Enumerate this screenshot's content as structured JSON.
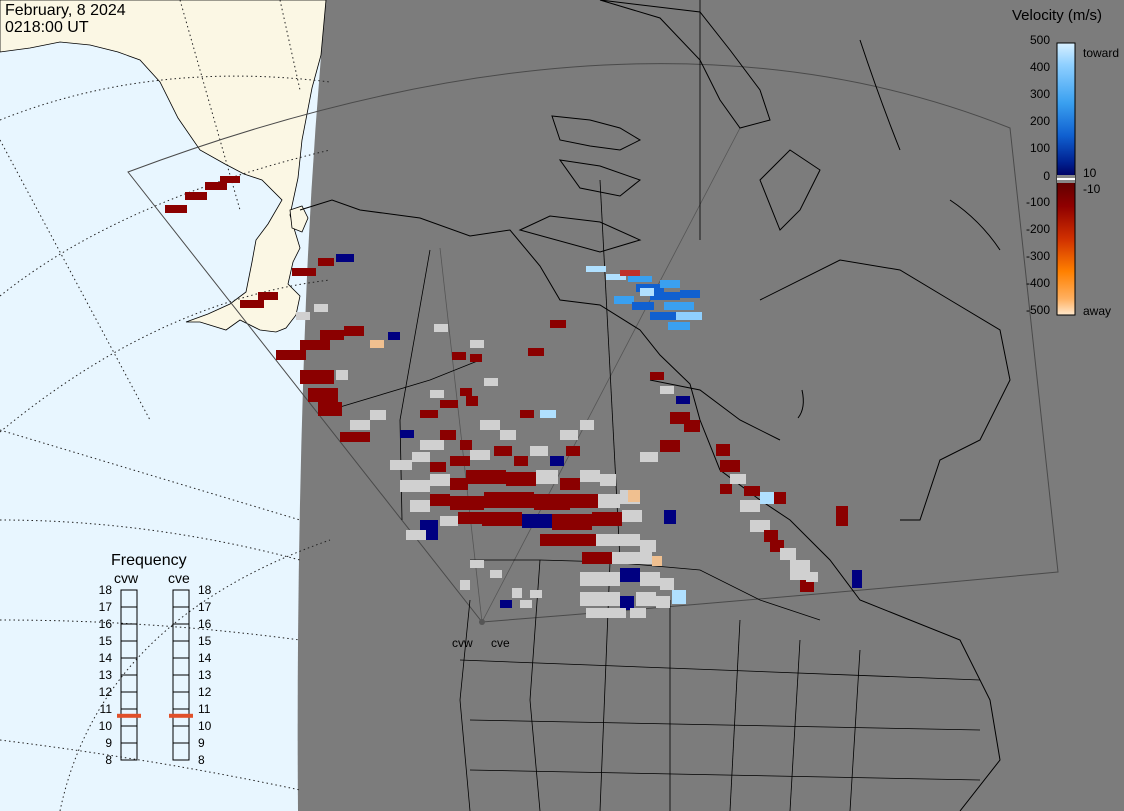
{
  "header": {
    "date": "February, 8 2024",
    "time": "0218:00 UT"
  },
  "colors": {
    "ocean": "#e8f6ff",
    "dark_land": "#7c7c7c",
    "light_land": "#fbf7e4",
    "ground_scatter": "#d0d0d0",
    "away_dark": "#8b0000",
    "toward_dark": "#000080",
    "toward_light": "#b0e0ff"
  },
  "velocity_scale": {
    "title": "Velocity (m/s)",
    "ticks": [
      "500",
      "400",
      "300",
      "200",
      "100",
      "10",
      "0",
      "-10",
      "-100",
      "-200",
      "-300",
      "-400",
      "-500"
    ],
    "top_label": "toward",
    "bottom_label": "away"
  },
  "frequency": {
    "title": "Frequency",
    "radars": [
      {
        "name": "cvw",
        "freq_mhz": 10.6
      },
      {
        "name": "cve",
        "freq_mhz": 10.6
      }
    ],
    "ticks": [
      "18",
      "17",
      "16",
      "15",
      "14",
      "13",
      "12",
      "11",
      "10",
      "9",
      "8"
    ],
    "marker_color": "#e0502a"
  },
  "sites": {
    "cvw": "cvw",
    "cve": "cve"
  }
}
